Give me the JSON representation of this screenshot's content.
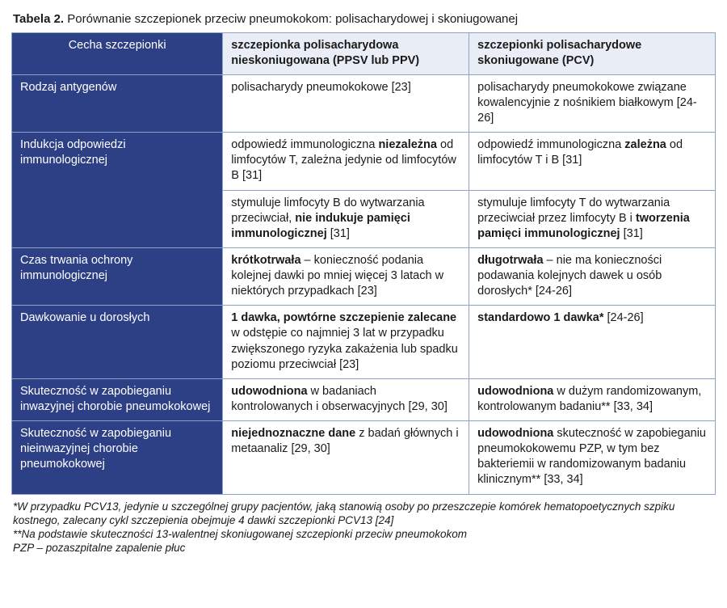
{
  "title_lead": "Tabela 2.",
  "title_rest": " Porównanie szczepionek przeciw pneumokokom: polisacharydowej i skoniugowanej",
  "header": {
    "feature": "Cecha szczepionki",
    "colA": "szczepionka polisacharydowa nieskoniugowana (PPSV lub PPV)",
    "colB": "szczepionki polisacharydowe skoniugowane (PCV)"
  },
  "rows": {
    "antigen": {
      "label": "Rodzaj antygenów",
      "a": "polisacharydy pneumokokowe [23]",
      "b": "polisacharydy pneumokokowe związane kowalencyjnie z nośnikiem białkowym [24-26]"
    },
    "immun": {
      "label": "Indukcja odpowiedzi immunologicznej",
      "a1_pre": "odpowiedź immunologiczna ",
      "a1_b": "niezależna",
      "a1_post": " od limfocytów T, zależna jedynie od limfocytów B [31]",
      "b1_pre": "odpowiedź immunologiczna ",
      "b1_b": "zależna",
      "b1_post": " od limfocytów T i B [31]",
      "a2_pre": "stymuluje limfocyty B do wytwarzania przeciwciał, ",
      "a2_b": "nie indukuje pamięci immunologicznej",
      "a2_post": " [31]",
      "b2_pre": "stymuluje limfocyty T do wytwarzania przeciwciał przez limfocyty B i ",
      "b2_b": "tworzenia pamięci immunologicznej",
      "b2_post": " [31]"
    },
    "duration": {
      "label": "Czas trwania ochrony immunologicznej",
      "a_b": "krótkotrwała",
      "a_post": " – konieczność podania kolejnej dawki po mniej więcej 3 latach w niektórych przypadkach [23]",
      "b_b": "długotrwała",
      "b_post": " – nie ma konieczności podawania kolejnych dawek u osób dorosłych* [24-26]"
    },
    "dosage": {
      "label": "Dawkowanie u dorosłych",
      "a_b": "1 dawka, powtórne szczepienie zalecane",
      "a_post": " w odstępie co najmniej 3 lat w przypadku zwiększonego ryzyka zakażenia lub spadku poziomu przeciwciał [23]",
      "b_b": "standardowo 1 dawka*",
      "b_post": " [24-26]"
    },
    "eff_inv": {
      "label": "Skuteczność w zapobieganiu inwazyjnej chorobie pneumokokowej",
      "a_b": "udowodniona",
      "a_post": " w badaniach kontrolowanych i obserwacyjnych [29, 30]",
      "b_b": "udowodniona",
      "b_post": " w dużym randomizowanym, kontrolowanym badaniu** [33, 34]"
    },
    "eff_noninv": {
      "label": "Skuteczność w zapobieganiu nieinwazyjnej chorobie pneumokokowej",
      "a_b": "niejednoznaczne dane",
      "a_post": " z badań głównych i metaanaliz [29, 30]",
      "b_b": "udowodniona",
      "b_post": " skuteczność w zapobieganiu pneumokokowemu PZP, w tym bez bakteriemii w randomizowanym badaniu klinicznym** [33, 34]"
    }
  },
  "footnotes": {
    "f1": "*W przypadku PCV13, jedynie u szczególnej grupy pacjentów, jaką stanowią osoby po przeszczepie komórek hematopoetycznych szpiku kostnego, zalecany cykl szczepienia obejmuje 4 dawki szczepionki PCV13 [24]",
    "f2": "**Na podstawie skuteczności 13-walentnej skoniugowanej szczepionki przeciw pneumokokom",
    "f3": "PZP – pozaszpitalne zapalenie płuc"
  },
  "colors": {
    "header_bg": "#2d3f85",
    "header_text": "#ffffff",
    "light_bg": "#e9edf6",
    "border": "#8ea3c9",
    "page_bg": "#ffffff",
    "text": "#1a1a1a"
  },
  "typography": {
    "body_fontsize_pt": 11,
    "title_fontsize_pt": 11,
    "footnote_fontsize_pt": 10
  },
  "layout": {
    "col_widths_pct": [
      30,
      35,
      35
    ]
  }
}
